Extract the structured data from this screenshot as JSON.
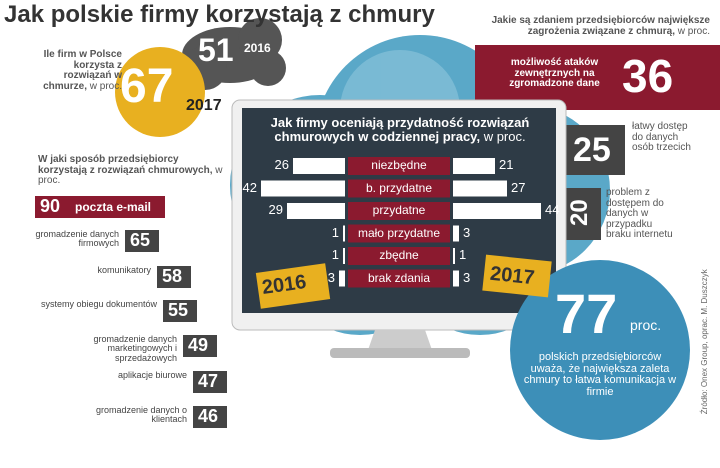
{
  "title": "Jak polskie firmy korzystają z chmury",
  "adoption": {
    "question": "Ile firm w Polsce korzysta z rozwiązań w chmurze,",
    "unit": "w proc.",
    "items": [
      {
        "value": 67,
        "year": 2017
      },
      {
        "value": 51,
        "year": 2016
      }
    ]
  },
  "threats": {
    "question": "Jakie są zdaniem przedsiębiorców największe zagrożenia związane z chmurą,",
    "unit": "w proc.",
    "items": [
      {
        "value": 36,
        "label": "możliwość ataków zewnętrznych na zgromadzone dane"
      },
      {
        "value": 25,
        "label": "łatwy dostęp do danych osób trzecich"
      },
      {
        "value": 20,
        "label": "problem z dostępem do danych w przypadku braku internetu"
      }
    ]
  },
  "usage": {
    "question": "W jaki sposób przedsiębiorcy korzystają z rozwiązań chmurowych,",
    "unit": "w proc.",
    "items": [
      {
        "label": "poczta e-mail",
        "value": 90
      },
      {
        "label": "gromadzenie danych firmowych",
        "value": 65
      },
      {
        "label": "komunikatory",
        "value": 58
      },
      {
        "label": "systemy obiegu dokumentów",
        "value": 55
      },
      {
        "label": "gromadzenie danych marketingowych i sprzedażowych",
        "value": 49
      },
      {
        "label": "aplikacje biurowe",
        "value": 47
      },
      {
        "label": "gromadzenie danych o klientach",
        "value": 46
      }
    ]
  },
  "rating": {
    "question": "Jak firmy oceniają przydatność rozwiązań chmurowych w codziennej pracy,",
    "unit": "w proc.",
    "years": [
      2016,
      2017
    ],
    "rows": [
      {
        "label": "niezbędne",
        "v2016": 26,
        "v2017": 21
      },
      {
        "label": "b. przydatne",
        "v2016": 42,
        "v2017": 27
      },
      {
        "label": "przydatne",
        "v2016": 29,
        "v2017": 44
      },
      {
        "label": "mało przydatne",
        "v2016": 1,
        "v2017": 3
      },
      {
        "label": "zbędne",
        "v2016": 1,
        "v2017": 1
      },
      {
        "label": "brak zdania",
        "v2016": 3,
        "v2017": 3
      }
    ]
  },
  "advantage": {
    "value": 77,
    "unit": "proc.",
    "text": "polskich przedsiębiorców uważa, że największa zaleta chmury to łatwa komunikacja w firmie"
  },
  "source": "Źródło: Onex Group, oprac. M. Duszczyk"
}
